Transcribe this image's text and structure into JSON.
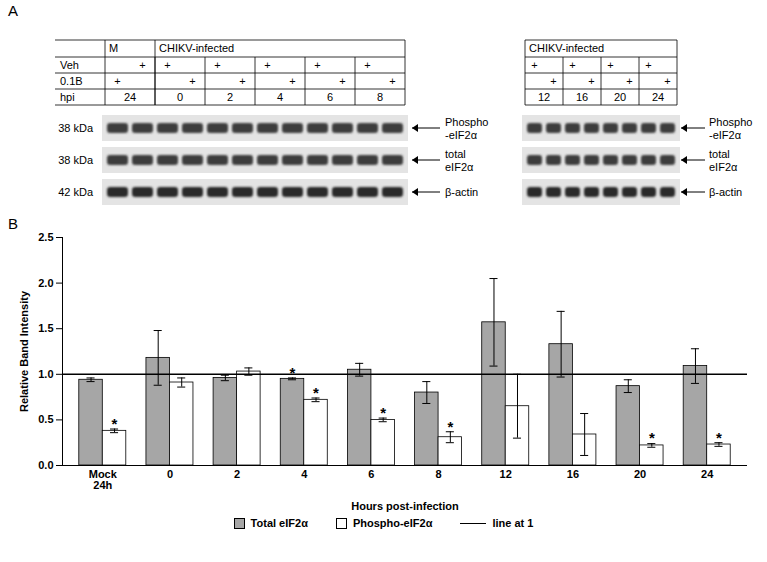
{
  "panel_a": {
    "label": "A",
    "blots": [
      {
        "groups": [
          {
            "label": "M",
            "span": 2
          },
          {
            "label": "CHIKV-infected",
            "span": 10
          }
        ],
        "row_labels": [
          "Veh",
          "0.1B",
          "hpi"
        ],
        "veh": [
          null,
          "+",
          "+",
          null,
          "+",
          null,
          "+",
          null,
          "+",
          null,
          "+",
          null
        ],
        "treatment": [
          "+",
          null,
          null,
          "+",
          null,
          "+",
          null,
          "+",
          null,
          "+",
          null,
          "+"
        ],
        "hpi": [
          {
            "label": "24",
            "span": 2
          },
          {
            "label": "0",
            "span": 2
          },
          {
            "label": "2",
            "span": 2
          },
          {
            "label": "4",
            "span": 2
          },
          {
            "label": "6",
            "span": 2
          },
          {
            "label": "8",
            "span": 2
          }
        ],
        "bands": [
          {
            "size": "38 kDa",
            "name": [
              "Phospho",
              "-eIF2α"
            ]
          },
          {
            "size": "38 kDa",
            "name": [
              "total",
              "eIF2α"
            ]
          },
          {
            "size": "42 kDa",
            "name": [
              "β-actin"
            ]
          }
        ]
      },
      {
        "groups": [
          {
            "label": "CHIKV-infected",
            "span": 8
          }
        ],
        "veh": [
          "+",
          null,
          "+",
          null,
          "+",
          null,
          "+",
          null
        ],
        "treatment": [
          null,
          "+",
          null,
          "+",
          null,
          "+",
          null,
          "+"
        ],
        "hpi": [
          {
            "label": "12",
            "span": 2
          },
          {
            "label": "16",
            "span": 2
          },
          {
            "label": "20",
            "span": 2
          },
          {
            "label": "24",
            "span": 2
          }
        ],
        "bands": [
          {
            "name": [
              "Phospho",
              "-eIF2α"
            ]
          },
          {
            "name": [
              "total",
              "eIF2α"
            ]
          },
          {
            "name": [
              "β-actin"
            ]
          }
        ]
      }
    ]
  },
  "panel_b": {
    "label": "B"
  },
  "chart_data": {
    "type": "bar",
    "categories": [
      "Mock\n24h",
      "0",
      "2",
      "4",
      "6",
      "8",
      "12",
      "16",
      "20",
      "24"
    ],
    "x_label": "Hours post-infection",
    "y_label": "Relative Band Intensity",
    "ylim": [
      0,
      2.5
    ],
    "yticks": [
      0,
      0.5,
      1,
      1.5,
      2,
      2.5
    ],
    "grid": false,
    "legend": "bottom",
    "series": [
      {
        "name": "Total eIF2α",
        "color": "#a6a6a6",
        "values": [
          0.94,
          1.18,
          0.96,
          0.95,
          1.05,
          0.8,
          1.57,
          1.33,
          0.87,
          1.09
        ],
        "errors": [
          0.02,
          0.3,
          0.03,
          0.01,
          0.07,
          0.12,
          0.48,
          0.36,
          0.07,
          0.19
        ],
        "annotations": [
          null,
          null,
          null,
          "*",
          null,
          null,
          null,
          null,
          null,
          null
        ]
      },
      {
        "name": "Phospho-eIF2α",
        "color": "#ffffff",
        "values": [
          0.38,
          0.91,
          1.03,
          0.72,
          0.5,
          0.31,
          0.65,
          0.34,
          0.22,
          0.23
        ],
        "errors": [
          0.02,
          0.05,
          0.04,
          0.02,
          0.02,
          0.06,
          0.35,
          0.23,
          0.02,
          0.02
        ],
        "annotations": [
          "*",
          null,
          null,
          "*",
          "*",
          "*",
          null,
          null,
          "*",
          "*"
        ]
      }
    ],
    "reference_line": {
      "name": "line at 1",
      "value": 1,
      "color": "#000000"
    }
  }
}
